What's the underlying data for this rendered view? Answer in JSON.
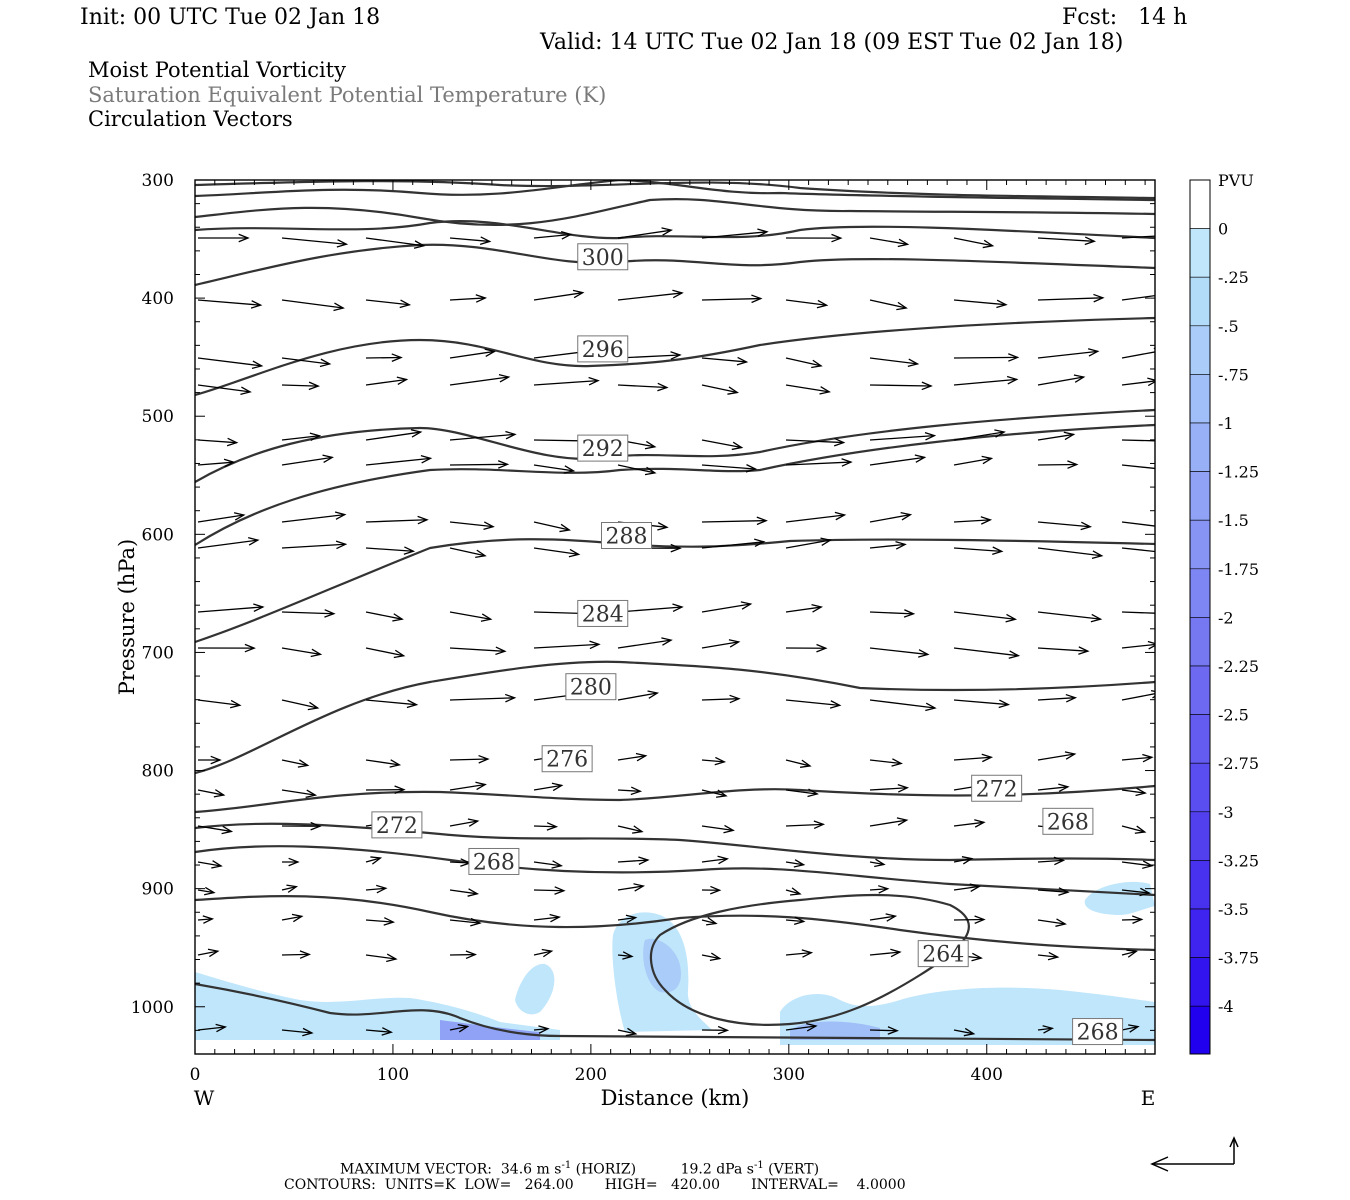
{
  "header": {
    "init": "Init: 00 UTC Tue 02 Jan 18",
    "fcst": "Fcst:   14 h",
    "valid": "Valid: 14 UTC Tue 02 Jan 18 (09 EST Tue 02 Jan 18)"
  },
  "fields": {
    "line1": "Moist Potential Vorticity",
    "line2": "Saturation Equivalent Potential Temperature (K)",
    "line3": "Circulation Vectors"
  },
  "chart_data": {
    "type": "cross-section",
    "xlabel": "Distance (km)",
    "ylabel": "Pressure (hPa)",
    "x_left_label": "W",
    "x_right_label": "E",
    "xlim": [
      0,
      485
    ],
    "ylim": [
      1040,
      300
    ],
    "x_ticks": [
      0,
      100,
      200,
      300,
      400
    ],
    "y_ticks": [
      300,
      400,
      500,
      600,
      700,
      800,
      900,
      1000
    ],
    "colorbar": {
      "unit": "PVU",
      "labels": [
        "0",
        "-.25",
        "-.5",
        "-.75",
        "-1",
        "-1.25",
        "-1.5",
        "-1.75",
        "-2",
        "-2.25",
        "-2.5",
        "-2.75",
        "-3",
        "-3.25",
        "-3.5",
        "-3.75",
        "-4"
      ],
      "colors": [
        "#ffffff",
        "#bfe6fb",
        "#b2daf9",
        "#a9ccf8",
        "#a0bef7",
        "#97b0f6",
        "#8fa2f5",
        "#8794f4",
        "#7e86f3",
        "#7678f2",
        "#6d6af1",
        "#645cf1",
        "#5b4ef0",
        "#5240ef",
        "#4932ef",
        "#3f23ee",
        "#3214ee",
        "#2000ee"
      ]
    },
    "contour_labels": [
      {
        "text": "300",
        "x": 206,
        "p": 365
      },
      {
        "text": "296",
        "x": 206,
        "p": 443
      },
      {
        "text": "292",
        "x": 206,
        "p": 527
      },
      {
        "text": "288",
        "x": 218,
        "p": 601
      },
      {
        "text": "284",
        "x": 206,
        "p": 667
      },
      {
        "text": "280",
        "x": 200,
        "p": 729
      },
      {
        "text": "276",
        "x": 188,
        "p": 790
      },
      {
        "text": "272",
        "x": 102,
        "p": 846
      },
      {
        "text": "272",
        "x": 405,
        "p": 815
      },
      {
        "text": "268",
        "x": 151,
        "p": 877
      },
      {
        "text": "268",
        "x": 441,
        "p": 843
      },
      {
        "text": "264",
        "x": 378,
        "p": 955
      },
      {
        "text": "268",
        "x": 456,
        "p": 1021
      }
    ],
    "footer": {
      "max_vector_label": "MAXIMUM VECTOR:",
      "horiz_value": "34.6 m s",
      "horiz_exp": "-1",
      "horiz_tag": "(HORIZ)",
      "vert_value": "19.2 dPa s",
      "vert_exp": "-1",
      "vert_tag": "(VERT)",
      "contours": "CONTOURS:  UNITS=K  LOW=   264.00       HIGH=   420.00       INTERVAL=    4.0000"
    }
  }
}
